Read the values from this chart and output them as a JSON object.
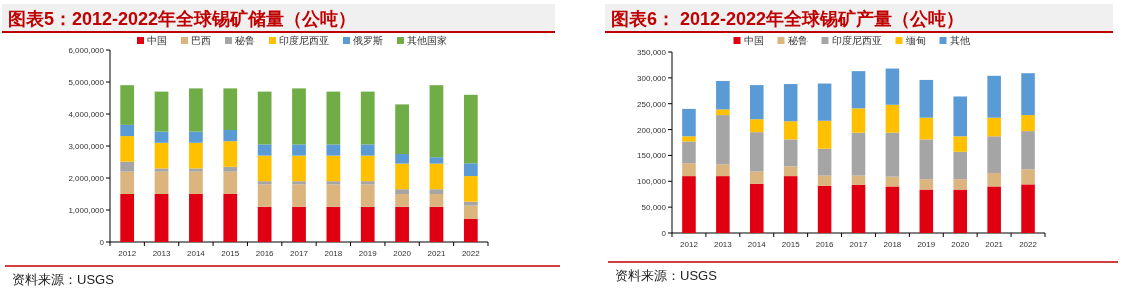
{
  "chart_data": [
    {
      "type": "bar",
      "stacked": true,
      "title": "图表5：2012-2022年全球锡矿储量（公吨）",
      "categories": [
        "2012",
        "2013",
        "2014",
        "2015",
        "2016",
        "2017",
        "2018",
        "2019",
        "2020",
        "2021",
        "2022"
      ],
      "series": [
        {
          "name": "中国",
          "color": "#e00012",
          "values": [
            1500000,
            1500000,
            1500000,
            1500000,
            1100000,
            1100000,
            1100000,
            1100000,
            1100000,
            1100000,
            720000
          ]
        },
        {
          "name": "巴西",
          "color": "#dcb47e",
          "values": [
            700000,
            700000,
            700000,
            700000,
            700000,
            700000,
            700000,
            700000,
            400000,
            400000,
            420000
          ]
        },
        {
          "name": "秘鲁",
          "color": "#a5a5a5",
          "values": [
            310000,
            100000,
            100000,
            150000,
            100000,
            100000,
            100000,
            100000,
            150000,
            150000,
            120000
          ]
        },
        {
          "name": "印度尼西亚",
          "color": "#ffc000",
          "values": [
            800000,
            800000,
            800000,
            800000,
            800000,
            800000,
            800000,
            800000,
            800000,
            800000,
            800000
          ]
        },
        {
          "name": "俄罗斯",
          "color": "#5b9bd5",
          "values": [
            350000,
            350000,
            350000,
            350000,
            350000,
            350000,
            350000,
            350000,
            300000,
            200000,
            400000
          ]
        },
        {
          "name": "其他国家",
          "color": "#70ad47",
          "values": [
            1240000,
            1250000,
            1350000,
            1300000,
            1650000,
            1750000,
            1650000,
            1650000,
            1550000,
            2250000,
            2140000
          ]
        }
      ],
      "ylim": [
        0,
        6000000
      ],
      "yticks": [
        {
          "value": 0,
          "label": "0"
        },
        {
          "value": 1000000,
          "label": "1,000,000"
        },
        {
          "value": 2000000,
          "label": "2,000,000"
        },
        {
          "value": 3000000,
          "label": "3,000,000"
        },
        {
          "value": 4000000,
          "label": "4,000,000"
        },
        {
          "value": 5000000,
          "label": "5,000,000"
        },
        {
          "value": 6000000,
          "label": "6,000,000"
        }
      ],
      "legend": "top",
      "annotations": [
        "资料来源：USGS"
      ]
    },
    {
      "type": "bar",
      "stacked": true,
      "title": "图表6： 2012-2022年全球锡矿产量（公吨）",
      "categories": [
        "2012",
        "2013",
        "2014",
        "2015",
        "2016",
        "2017",
        "2018",
        "2019",
        "2020",
        "2021",
        "2022"
      ],
      "series": [
        {
          "name": "中国",
          "color": "#e00012",
          "values": [
            110000,
            110000,
            95000,
            110000,
            91000,
            93000,
            90000,
            84000,
            84000,
            90000,
            94000
          ]
        },
        {
          "name": "秘鲁",
          "color": "#dcb47e",
          "values": [
            25000,
            23000,
            24000,
            19000,
            20000,
            18000,
            19000,
            20000,
            20000,
            26000,
            29000
          ]
        },
        {
          "name": "印度尼西亚",
          "color": "#a5a5a5",
          "values": [
            42000,
            95000,
            76000,
            52000,
            52000,
            83000,
            85000,
            77000,
            53000,
            71000,
            74000
          ]
        },
        {
          "name": "缅甸",
          "color": "#ffc000",
          "values": [
            10000,
            11000,
            25000,
            35000,
            54000,
            47000,
            54000,
            42000,
            30000,
            36000,
            31000
          ]
        },
        {
          "name": "其他",
          "color": "#5b9bd5",
          "values": [
            53000,
            55000,
            66000,
            72000,
            72000,
            72000,
            70000,
            73000,
            77000,
            81000,
            81000
          ]
        }
      ],
      "ylim": [
        0,
        350000
      ],
      "yticks": [
        {
          "value": 0,
          "label": "0"
        },
        {
          "value": 50000,
          "label": "50,000"
        },
        {
          "value": 100000,
          "label": "100,000"
        },
        {
          "value": 150000,
          "label": "150,000"
        },
        {
          "value": 200000,
          "label": "200,000"
        },
        {
          "value": 250000,
          "label": "250,000"
        },
        {
          "value": 300000,
          "label": "300,000"
        },
        {
          "value": 350000,
          "label": "350,000"
        }
      ],
      "legend": "top",
      "annotations": [
        "资料来源：USGS"
      ]
    }
  ]
}
